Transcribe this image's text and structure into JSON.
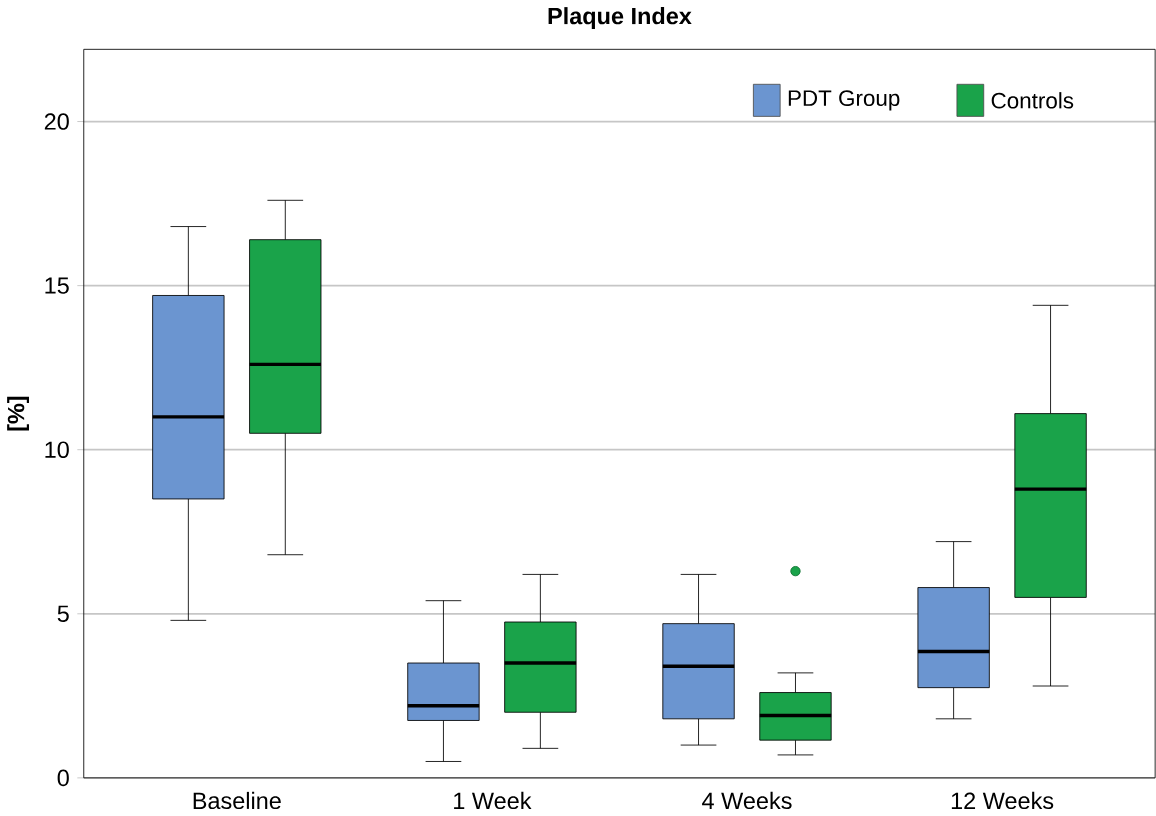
{
  "chart_data": {
    "type": "box",
    "title": "Plaque  Index",
    "ylabel": "[%]",
    "categories": [
      "Baseline",
      "1 Week",
      "4 Weeks",
      "12 Weeks"
    ],
    "series": [
      {
        "name": "PDT Group",
        "color": "#6b95d0",
        "boxes": [
          {
            "low": 4.8,
            "q1": 8.5,
            "median": 11.0,
            "q3": 14.7,
            "high": 16.8
          },
          {
            "low": 0.5,
            "q1": 1.75,
            "median": 2.2,
            "q3": 3.5,
            "high": 5.4
          },
          {
            "low": 1.0,
            "q1": 1.8,
            "median": 3.4,
            "q3": 4.7,
            "high": 6.2
          },
          {
            "low": 1.8,
            "q1": 2.75,
            "median": 3.85,
            "q3": 5.8,
            "high": 7.2
          }
        ]
      },
      {
        "name": "Controls",
        "color": "#1aa34a",
        "boxes": [
          {
            "low": 6.8,
            "q1": 10.5,
            "median": 12.6,
            "q3": 16.4,
            "high": 17.6
          },
          {
            "low": 0.9,
            "q1": 2.0,
            "median": 3.5,
            "q3": 4.75,
            "high": 6.2
          },
          {
            "low": 0.7,
            "q1": 1.15,
            "median": 1.9,
            "q3": 2.6,
            "high": 3.2,
            "outliers": [
              6.3
            ]
          },
          {
            "low": 2.8,
            "q1": 5.5,
            "median": 8.8,
            "q3": 11.1,
            "high": 14.4
          }
        ]
      }
    ],
    "ylim": [
      0,
      22.2
    ],
    "yticks": [
      0,
      5,
      10,
      15,
      20
    ],
    "grid": "y",
    "legend": "top right"
  }
}
